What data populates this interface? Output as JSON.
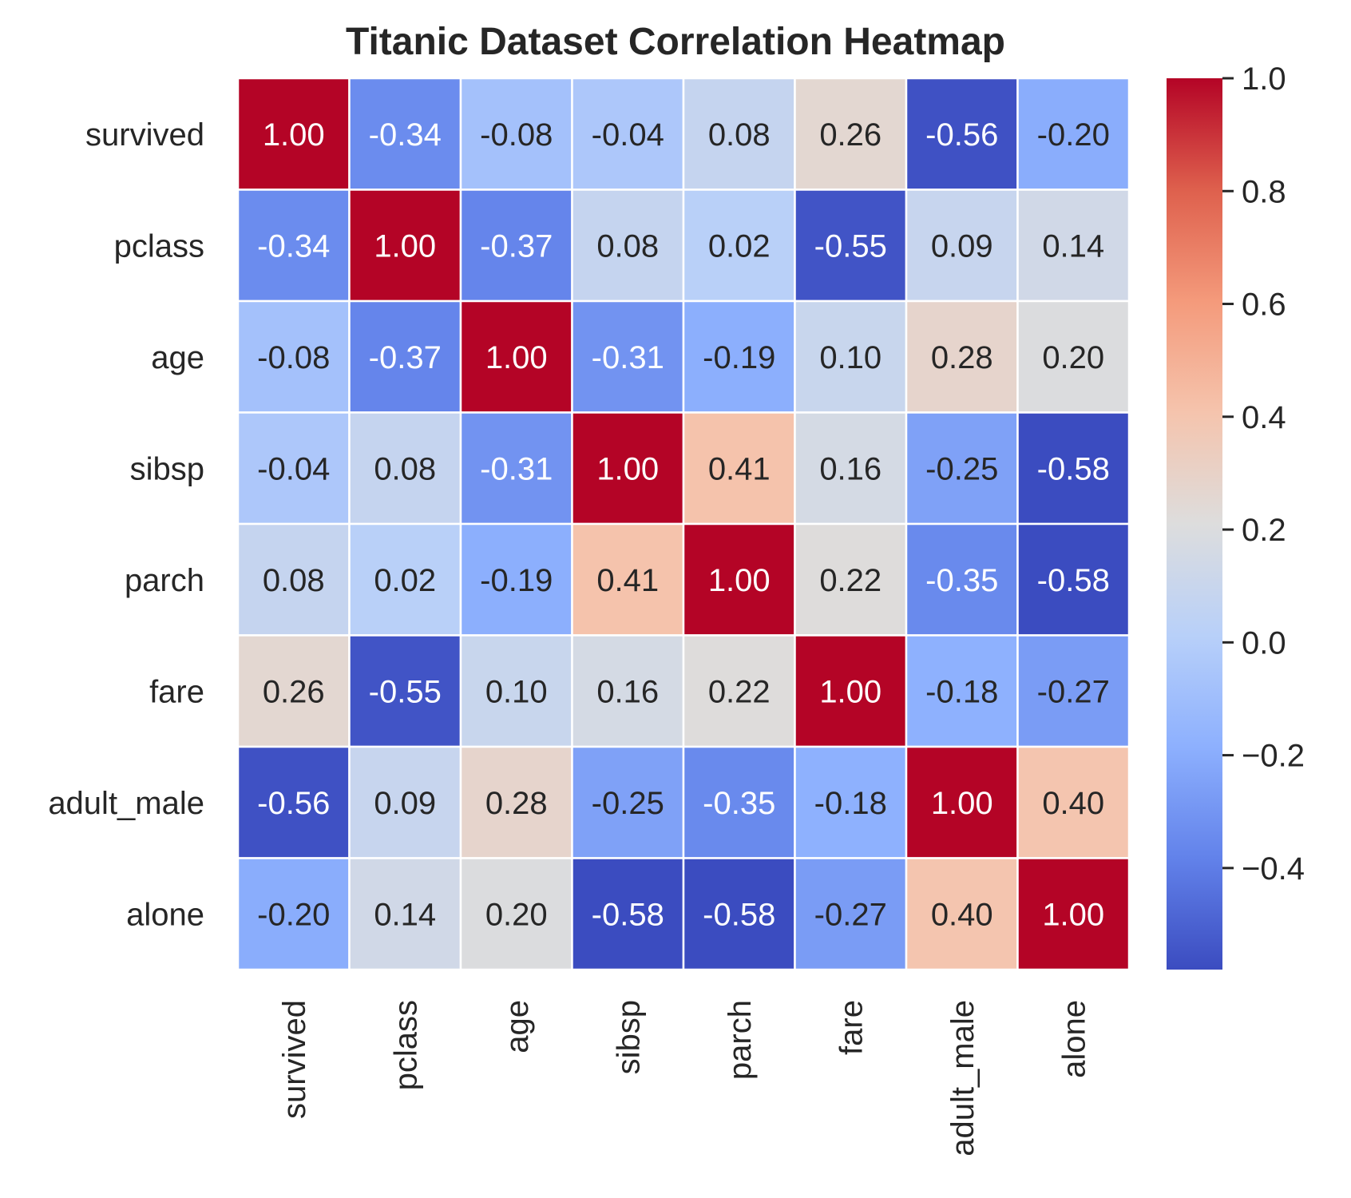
{
  "chart_data": {
    "type": "heatmap",
    "title": "Titanic Dataset Correlation Heatmap",
    "rows": [
      "survived",
      "pclass",
      "age",
      "sibsp",
      "parch",
      "fare",
      "adult_male",
      "alone"
    ],
    "columns": [
      "survived",
      "pclass",
      "age",
      "sibsp",
      "parch",
      "fare",
      "adult_male",
      "alone"
    ],
    "values": [
      [
        1.0,
        -0.34,
        -0.08,
        -0.04,
        0.08,
        0.26,
        -0.56,
        -0.2
      ],
      [
        -0.34,
        1.0,
        -0.37,
        0.08,
        0.02,
        -0.55,
        0.09,
        0.14
      ],
      [
        -0.08,
        -0.37,
        1.0,
        -0.31,
        -0.19,
        0.1,
        0.28,
        0.2
      ],
      [
        -0.04,
        0.08,
        -0.31,
        1.0,
        0.41,
        0.16,
        -0.25,
        -0.58
      ],
      [
        0.08,
        0.02,
        -0.19,
        0.41,
        1.0,
        0.22,
        -0.35,
        -0.58
      ],
      [
        0.26,
        -0.55,
        0.1,
        0.16,
        0.22,
        1.0,
        -0.18,
        -0.27
      ],
      [
        -0.56,
        0.09,
        0.28,
        -0.25,
        -0.35,
        -0.18,
        1.0,
        0.4
      ],
      [
        -0.2,
        0.14,
        0.2,
        -0.58,
        -0.58,
        -0.27,
        0.4,
        1.0
      ]
    ],
    "value_format": "0.00",
    "colormap": "coolwarm",
    "vmin": -0.58,
    "vmax": 1.0,
    "colorbar_ticks": [
      1.0,
      0.8,
      0.6,
      0.4,
      0.2,
      0.0,
      -0.2,
      -0.4
    ],
    "colorbar_tick_labels": [
      "1.0",
      "0.8",
      "0.6",
      "0.4",
      "0.2",
      "0.0",
      "−0.2",
      "−0.4"
    ],
    "xlabel_rotation": "vertical",
    "grid_lines_color": "#ffffff",
    "text_dark": "#262626",
    "text_light": "#ffffff"
  }
}
